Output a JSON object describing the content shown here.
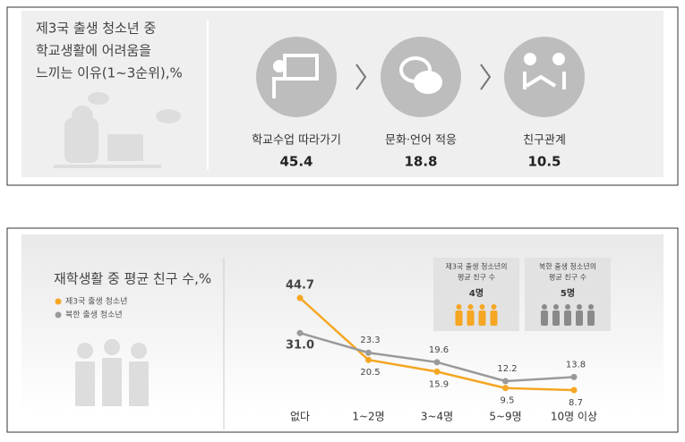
{
  "infographic": {
    "title": [
      "제3국 출생 청소년 중",
      "학교생활에 어려움을",
      "느끼는 이유(1~3순위),%"
    ],
    "items": [
      {
        "label": "학교수업 따라가기",
        "value": "45.4"
      },
      {
        "label": "문화·언어 적응",
        "value": "18.8"
      },
      {
        "label": "친구관계",
        "value": "10.5"
      }
    ]
  },
  "chart_data": {
    "type": "line",
    "title": "재학생활 중 평균 친구 수,%",
    "categories": [
      "없다",
      "1~2명",
      "3~4명",
      "5~9명",
      "10명 이상"
    ],
    "series": [
      {
        "name": "제3국 출생 청소년",
        "color": "#f5a623",
        "values": [
          44.7,
          20.5,
          15.9,
          9.5,
          8.7
        ]
      },
      {
        "name": "북한 출생 청소년",
        "color": "#9a9a9a",
        "values": [
          31.0,
          23.3,
          19.6,
          12.2,
          13.8
        ],
        "value_labels": [
          "31.0",
          "23.3",
          "19.6",
          "12.2",
          "13.8"
        ]
      }
    ],
    "averages": [
      {
        "label": [
          "제3국 출생 청소년의",
          "평균 친구 수"
        ],
        "value": 4,
        "value_label": "4명",
        "color": "#f5a623"
      },
      {
        "label": [
          "북한 출생 청소년의",
          "평균 친구 수"
        ],
        "value": 5,
        "value_label": "5명",
        "color": "#8a8a8a"
      }
    ]
  }
}
